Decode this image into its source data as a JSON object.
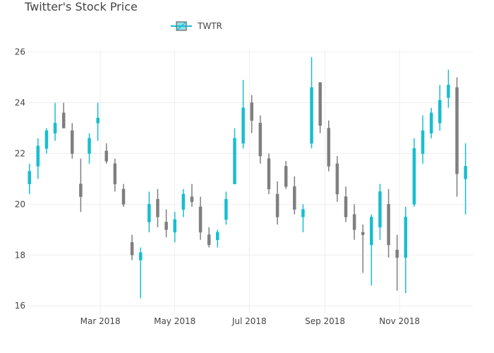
{
  "chart_data": {
    "type": "candlestick",
    "title": "Twitter's Stock Price",
    "legend": {
      "entries": [
        "TWTR"
      ],
      "position": "top"
    },
    "series": [
      {
        "name": "TWTR",
        "increasing_color": "#17BECF",
        "decreasing_color": "#7F7F7F"
      }
    ],
    "x_range": [
      "2018-01-01",
      "2018-12-31"
    ],
    "x_ticks": [
      {
        "date": "2018-03-01",
        "label": "Mar 2018"
      },
      {
        "date": "2018-05-01",
        "label": "May 2018"
      },
      {
        "date": "2018-07-01",
        "label": "Jul 2018"
      },
      {
        "date": "2018-09-01",
        "label": "Sep 2018"
      },
      {
        "date": "2018-11-01",
        "label": "Nov 2018"
      }
    ],
    "ylim": [
      15.7,
      26.1
    ],
    "y_ticks": [
      16,
      18,
      20,
      22,
      24,
      26
    ],
    "grid": true,
    "dates": [
      "2018-01-02",
      "2018-01-09",
      "2018-01-16",
      "2018-01-23",
      "2018-01-30",
      "2018-02-06",
      "2018-02-13",
      "2018-02-20",
      "2018-02-27",
      "2018-03-06",
      "2018-03-13",
      "2018-03-20",
      "2018-03-27",
      "2018-04-03",
      "2018-04-10",
      "2018-04-17",
      "2018-04-24",
      "2018-05-01",
      "2018-05-08",
      "2018-05-15",
      "2018-05-22",
      "2018-05-29",
      "2018-06-05",
      "2018-06-12",
      "2018-06-19",
      "2018-06-26",
      "2018-07-03",
      "2018-07-10",
      "2018-07-17",
      "2018-07-24",
      "2018-07-31",
      "2018-08-07",
      "2018-08-14",
      "2018-08-21",
      "2018-08-28",
      "2018-09-04",
      "2018-09-11",
      "2018-09-18",
      "2018-09-25",
      "2018-10-02",
      "2018-10-09",
      "2018-10-16",
      "2018-10-23",
      "2018-10-30",
      "2018-11-06",
      "2018-11-13",
      "2018-11-20",
      "2018-11-27",
      "2018-12-04",
      "2018-12-11",
      "2018-12-18",
      "2018-12-25"
    ],
    "open": [
      20.8,
      21.5,
      22.2,
      22.8,
      23.6,
      22.9,
      20.8,
      22.0,
      23.2,
      22.1,
      21.6,
      20.6,
      18.5,
      17.8,
      19.3,
      20.2,
      19.3,
      18.9,
      19.8,
      20.3,
      19.9,
      18.8,
      18.6,
      19.4,
      20.8,
      22.4,
      24.0,
      23.2,
      21.8,
      20.4,
      21.5,
      20.7,
      19.5,
      22.4,
      24.8,
      23.0,
      21.6,
      20.3,
      19.6,
      18.9,
      18.4,
      19.1,
      20.0,
      18.2,
      17.9,
      20.0,
      22.0,
      22.8,
      23.2,
      24.2,
      24.6,
      21.0
    ],
    "high": [
      21.6,
      22.6,
      23.0,
      24.0,
      24.0,
      23.2,
      21.8,
      22.8,
      24.0,
      22.4,
      21.8,
      20.8,
      18.8,
      18.3,
      20.5,
      20.6,
      19.8,
      19.7,
      20.6,
      20.8,
      20.3,
      19.1,
      19.0,
      20.5,
      23.0,
      24.9,
      24.3,
      23.5,
      22.0,
      20.9,
      21.7,
      21.1,
      20.0,
      25.8,
      24.8,
      23.3,
      21.9,
      20.7,
      20.0,
      19.2,
      19.6,
      20.8,
      20.6,
      18.8,
      19.9,
      22.6,
      23.5,
      23.8,
      24.7,
      25.3,
      25.0,
      22.4
    ],
    "low": [
      20.4,
      21.0,
      22.0,
      22.5,
      23.0,
      21.8,
      19.7,
      21.6,
      22.5,
      21.6,
      20.5,
      19.9,
      17.8,
      16.3,
      18.9,
      19.1,
      18.7,
      18.5,
      19.5,
      19.9,
      18.6,
      18.3,
      18.3,
      19.2,
      20.8,
      22.2,
      22.8,
      21.6,
      20.4,
      19.2,
      20.6,
      19.6,
      18.9,
      22.2,
      22.8,
      21.3,
      20.1,
      19.3,
      18.6,
      17.3,
      16.8,
      18.6,
      17.9,
      16.6,
      16.5,
      19.9,
      21.6,
      22.6,
      22.9,
      23.8,
      20.3,
      19.6
    ],
    "close": [
      21.3,
      22.3,
      22.9,
      23.2,
      23.0,
      22.0,
      20.3,
      22.6,
      23.4,
      21.7,
      20.8,
      20.0,
      18.0,
      18.1,
      20.0,
      19.5,
      19.0,
      19.4,
      20.4,
      20.1,
      18.9,
      18.4,
      18.9,
      20.2,
      22.6,
      23.8,
      23.3,
      21.9,
      20.6,
      19.5,
      20.7,
      19.8,
      19.8,
      24.6,
      23.1,
      21.5,
      20.4,
      19.5,
      19.0,
      18.8,
      19.5,
      20.5,
      18.4,
      17.9,
      19.5,
      22.2,
      22.9,
      23.6,
      24.1,
      24.7,
      21.2,
      21.5
    ]
  }
}
